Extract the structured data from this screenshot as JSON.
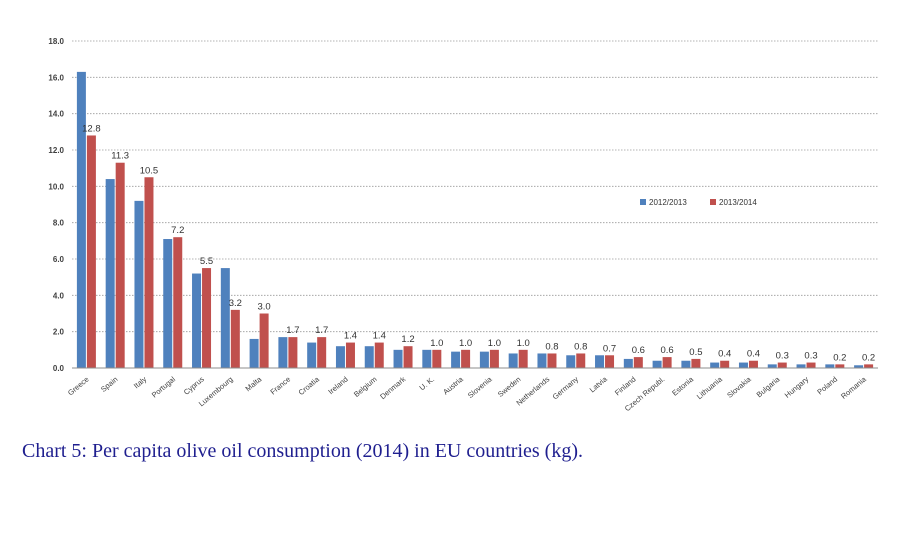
{
  "caption": "Chart 5: Per capita olive oil consumption (2014) in EU countries (kg).",
  "chart_data": {
    "type": "bar",
    "ylim": [
      0,
      18
    ],
    "yticks": [
      "0.0",
      "2.0",
      "4.0",
      "6.0",
      "8.0",
      "10.0",
      "12.0",
      "14.0",
      "16.0",
      "18.0"
    ],
    "grid": true,
    "legend_position": "right",
    "categories": [
      "Greece",
      "Spain",
      "Italy",
      "Portugal",
      "Cyprus",
      "Luxembourg",
      "Malta",
      "France",
      "Croatia",
      "Ireland",
      "Belgium",
      "Denmark",
      "U. K.",
      "Austria",
      "Slovenia",
      "Sweden",
      "Netherlands",
      "Germany",
      "Latvia",
      "Finland",
      "Czech Republ.",
      "Estonia",
      "Lithuania",
      "Slovakia",
      "Bulgaria",
      "Hungary",
      "Poland",
      "Romania"
    ],
    "series": [
      {
        "name": "2012/2013",
        "color": "#4f81bd",
        "values": [
          16.3,
          10.4,
          9.2,
          7.1,
          5.2,
          5.5,
          1.6,
          1.7,
          1.4,
          1.2,
          1.2,
          1.0,
          1.0,
          0.9,
          0.9,
          0.8,
          0.8,
          0.7,
          0.7,
          0.5,
          0.4,
          0.4,
          0.3,
          0.3,
          0.2,
          0.2,
          0.2,
          0.15
        ]
      },
      {
        "name": "2013/2014",
        "color": "#c0504d",
        "values": [
          12.8,
          11.3,
          10.5,
          7.2,
          5.5,
          3.2,
          3.0,
          1.7,
          1.7,
          1.4,
          1.4,
          1.2,
          1.0,
          1.0,
          1.0,
          1.0,
          0.8,
          0.8,
          0.7,
          0.6,
          0.6,
          0.5,
          0.4,
          0.4,
          0.3,
          0.3,
          0.2,
          0.2
        ],
        "labels": [
          "12.8",
          "11.3",
          "10.5",
          "7.2",
          "5.5",
          "3.2",
          "3.0",
          "1.7",
          "1.7",
          "1.4",
          "1.4",
          "1.2",
          "1.0",
          "1.0",
          "1.0",
          "1.0",
          "0.8",
          "0.8",
          "0.7",
          "0.6",
          "0.6",
          "0.5",
          "0.4",
          "0.4",
          "0.3",
          "0.3",
          "0.2",
          "0.2"
        ]
      }
    ]
  }
}
